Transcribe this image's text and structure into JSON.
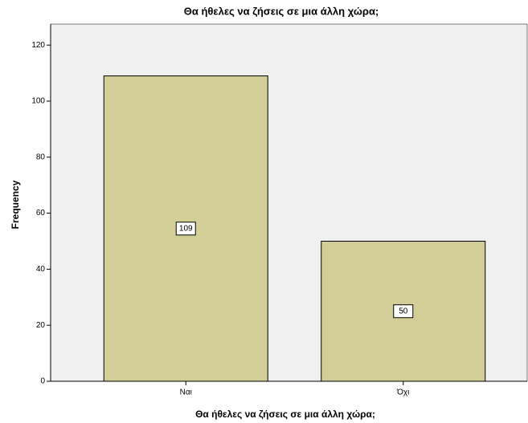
{
  "chart_data": {
    "type": "bar",
    "title": "Θα ήθελες να ζήσεις σε μια άλλη χώρα;",
    "x_label": "Θα ήθελες να ζήσεις σε μια άλλη χώρα;",
    "y_label": "Frequency",
    "categories": [
      "Ναι",
      "Όχι"
    ],
    "values": [
      109,
      50
    ],
    "color": "#d3ce97",
    "ylim": [
      0,
      127.5
    ],
    "yticks": [
      0,
      20,
      40,
      60,
      80,
      100,
      120
    ],
    "grid": false
  }
}
